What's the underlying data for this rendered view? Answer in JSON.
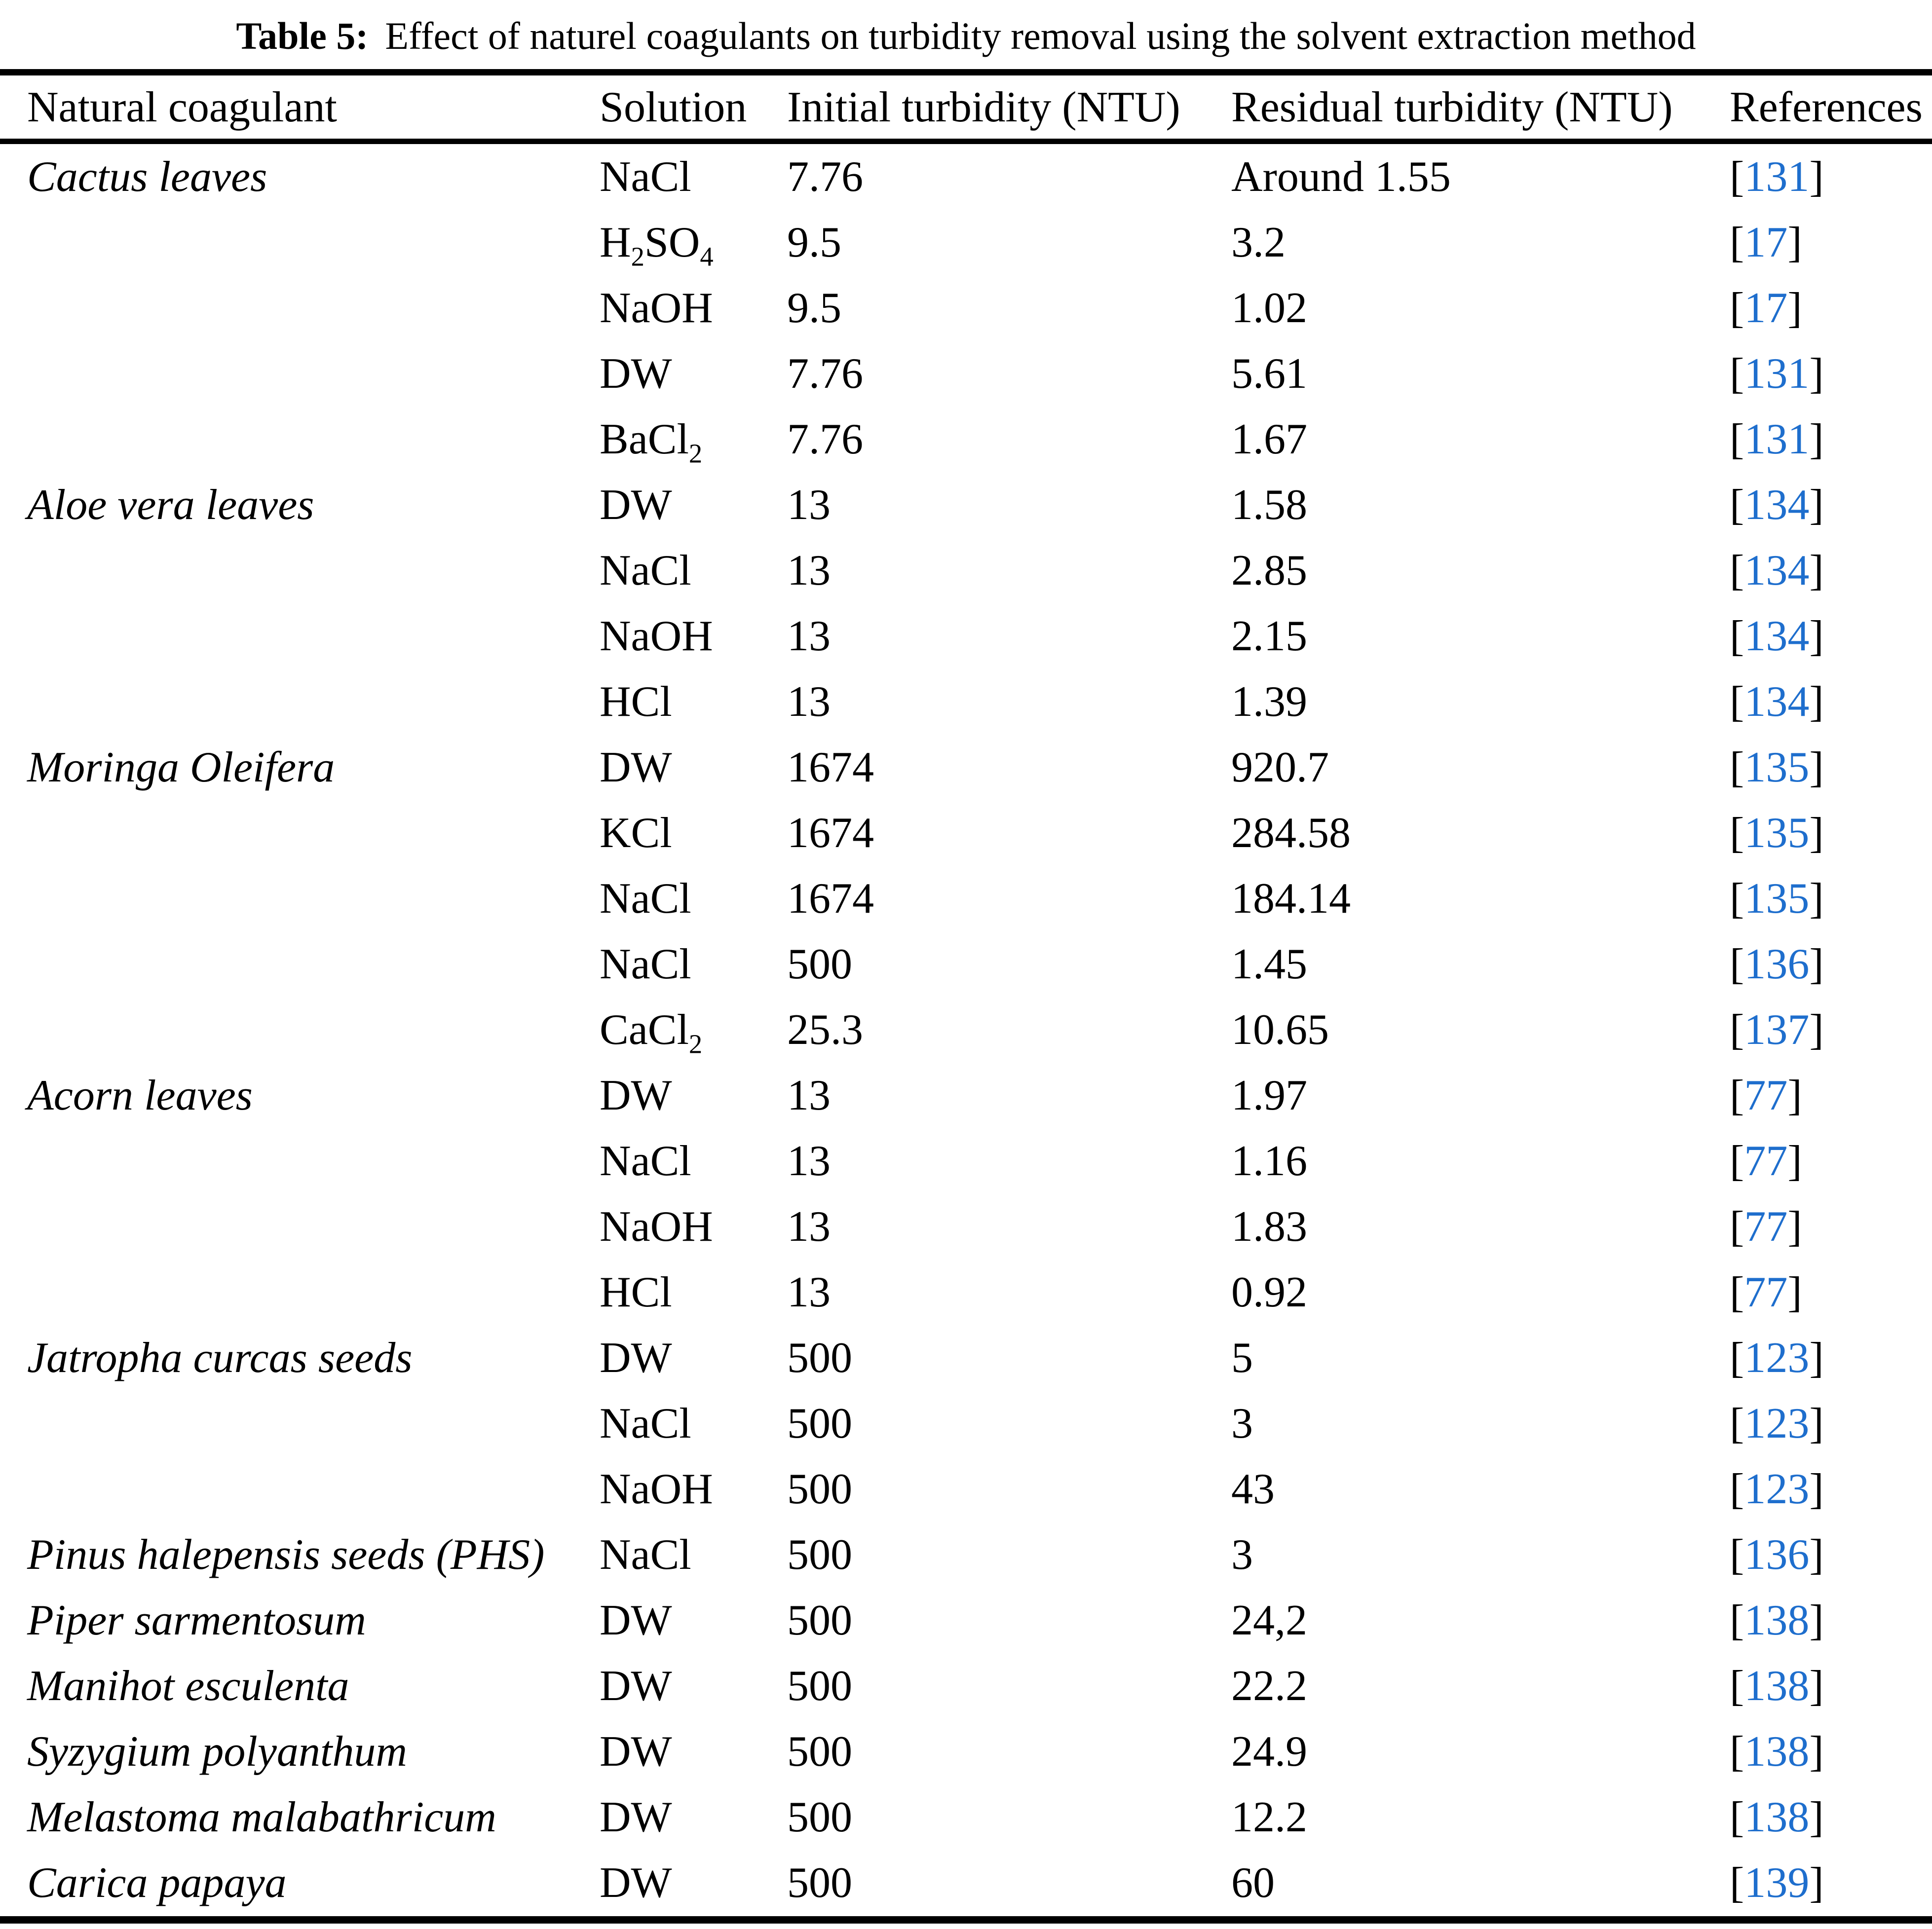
{
  "title": {
    "label": "Table 5:",
    "text": "Effect of naturel coagulants on turbidity removal using the solvent extraction method"
  },
  "citation": {
    "open": "[",
    "close": "]"
  },
  "colors": {
    "reference_blue": "#1e6ecd",
    "text_black": "#000000",
    "page_background": "#ffffff"
  },
  "table": {
    "columns": [
      "Natural coagulant",
      "Solution",
      "Initial turbidity (NTU)",
      "Residual turbidity (NTU)",
      "References"
    ],
    "rows": [
      {
        "coagulant": "Cactus leaves",
        "solution": "NaCl",
        "initial": "7.76",
        "residual": "Around 1.55",
        "ref": "131"
      },
      {
        "coagulant": "",
        "solution": "H2SO4",
        "initial": "9.5",
        "residual": "3.2",
        "ref": "17"
      },
      {
        "coagulant": "",
        "solution": "NaOH",
        "initial": "9.5",
        "residual": "1.02",
        "ref": "17"
      },
      {
        "coagulant": "",
        "solution": "DW",
        "initial": "7.76",
        "residual": "5.61",
        "ref": "131"
      },
      {
        "coagulant": "",
        "solution": "BaCl2",
        "initial": "7.76",
        "residual": "1.67",
        "ref": "131"
      },
      {
        "coagulant": "Aloe vera leaves",
        "solution": "DW",
        "initial": "13",
        "residual": "1.58",
        "ref": "134"
      },
      {
        "coagulant": "",
        "solution": "NaCl",
        "initial": "13",
        "residual": "2.85",
        "ref": "134"
      },
      {
        "coagulant": "",
        "solution": "NaOH",
        "initial": "13",
        "residual": "2.15",
        "ref": "134"
      },
      {
        "coagulant": "",
        "solution": "HCl",
        "initial": "13",
        "residual": "1.39",
        "ref": "134"
      },
      {
        "coagulant": "Moringa Oleifera",
        "solution": "DW",
        "initial": "1674",
        "residual": "920.7",
        "ref": "135"
      },
      {
        "coagulant": "",
        "solution": "KCl",
        "initial": "1674",
        "residual": "284.58",
        "ref": "135"
      },
      {
        "coagulant": "",
        "solution": "NaCl",
        "initial": "1674",
        "residual": "184.14",
        "ref": "135"
      },
      {
        "coagulant": "",
        "solution": "NaCl",
        "initial": "500",
        "residual": "1.45",
        "ref": "136"
      },
      {
        "coagulant": "",
        "solution": "CaCl2",
        "initial": "25.3",
        "residual": "10.65",
        "ref": "137"
      },
      {
        "coagulant": "Acorn leaves",
        "solution": "DW",
        "initial": "13",
        "residual": "1.97",
        "ref": "77"
      },
      {
        "coagulant": "",
        "solution": "NaCl",
        "initial": "13",
        "residual": "1.16",
        "ref": "77"
      },
      {
        "coagulant": "",
        "solution": "NaOH",
        "initial": "13",
        "residual": "1.83",
        "ref": "77"
      },
      {
        "coagulant": "",
        "solution": "HCl",
        "initial": "13",
        "residual": "0.92",
        "ref": "77"
      },
      {
        "coagulant": "Jatropha curcas seeds",
        "solution": "DW",
        "initial": "500",
        "residual": "5",
        "ref": "123"
      },
      {
        "coagulant": "",
        "solution": "NaCl",
        "initial": "500",
        "residual": "3",
        "ref": "123"
      },
      {
        "coagulant": "",
        "solution": "NaOH",
        "initial": "500",
        "residual": "43",
        "ref": "123"
      },
      {
        "coagulant": "Pinus halepensis seeds (PHS)",
        "solution": "NaCl",
        "initial": "500",
        "residual": "3",
        "ref": "136"
      },
      {
        "coagulant": "Piper sarmentosum",
        "solution": "DW",
        "initial": "500",
        "residual": "24,2",
        "ref": "138"
      },
      {
        "coagulant": "Manihot esculenta",
        "solution": "DW",
        "initial": "500",
        "residual": "22.2",
        "ref": "138"
      },
      {
        "coagulant": "Syzygium polyanthum",
        "solution": "DW",
        "initial": "500",
        "residual": "24.9",
        "ref": "138"
      },
      {
        "coagulant": "Melastoma malabathricum",
        "solution": "DW",
        "initial": "500",
        "residual": "12.2",
        "ref": "138"
      },
      {
        "coagulant": "Carica papaya",
        "solution": "DW",
        "initial": "500",
        "residual": "60",
        "ref": "139"
      }
    ]
  }
}
